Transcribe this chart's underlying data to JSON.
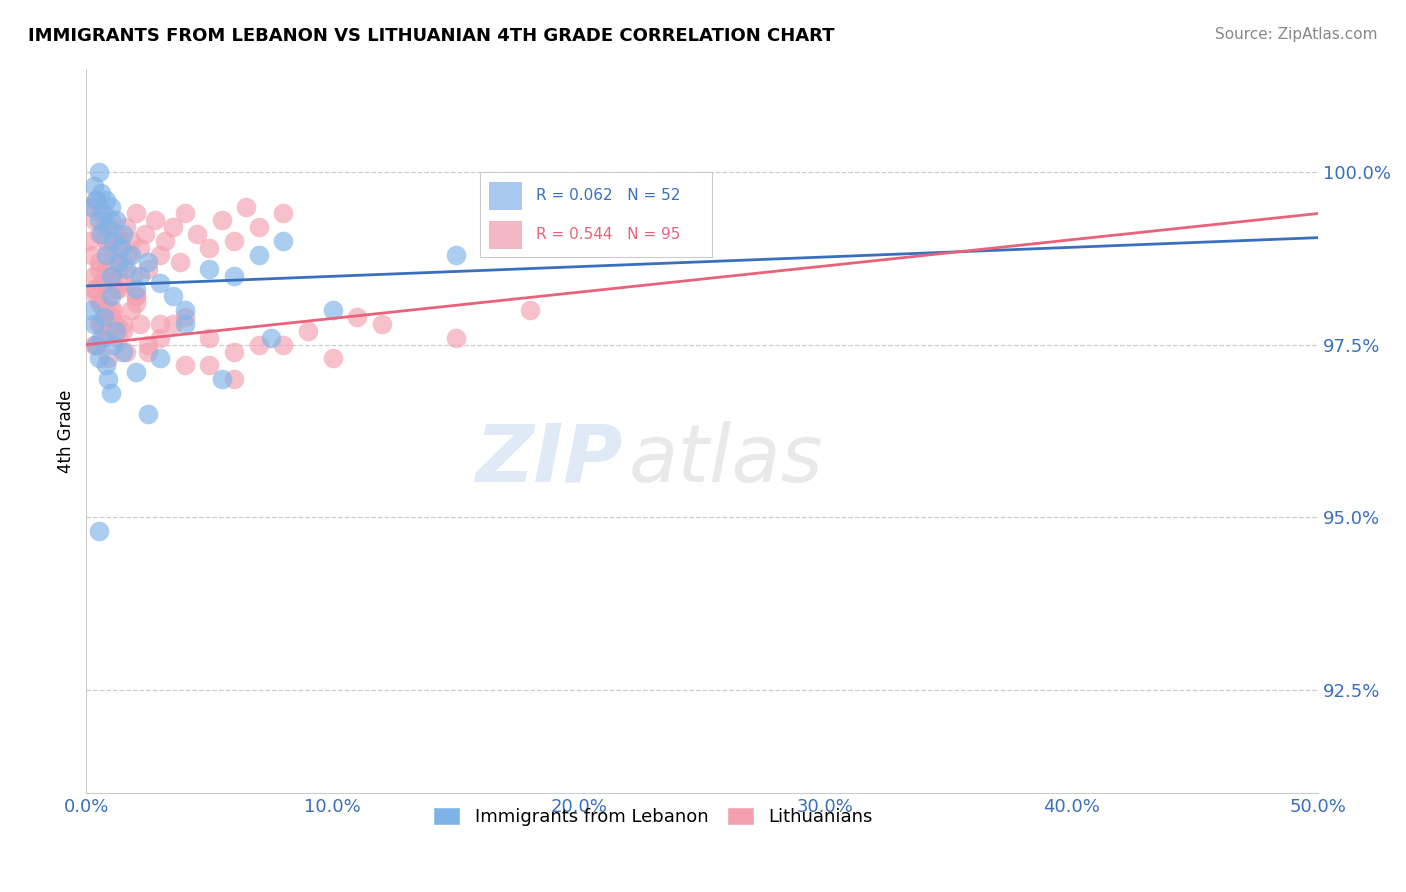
{
  "title": "IMMIGRANTS FROM LEBANON VS LITHUANIAN 4TH GRADE CORRELATION CHART",
  "source_text": "Source: ZipAtlas.com",
  "ylabel": "4th Grade",
  "xlim": [
    0.0,
    50.0
  ],
  "ylim": [
    91.0,
    101.5
  ],
  "yticks": [
    92.5,
    95.0,
    97.5,
    100.0
  ],
  "ytick_labels": [
    "92.5%",
    "95.0%",
    "97.5%",
    "100.0%"
  ],
  "xticks": [
    0.0,
    10.0,
    20.0,
    30.0,
    40.0,
    50.0
  ],
  "xtick_labels": [
    "0.0%",
    "10.0%",
    "20.0%",
    "30.0%",
    "40.0%",
    "50.0%"
  ],
  "legend_labels": [
    "Immigrants from Lebanon",
    "Lithuanians"
  ],
  "blue_color": "#7fb3e8",
  "pink_color": "#f4a0b0",
  "blue_line_color": "#3a6fbd",
  "pink_line_color": "#e8637a",
  "R_blue": 0.062,
  "N_blue": 52,
  "R_pink": 0.544,
  "N_pink": 95,
  "legend_box_blue": "#a8c8f0",
  "legend_box_pink": "#f4b8c4",
  "blue_scatter_x": [
    0.2,
    0.3,
    0.4,
    0.5,
    0.5,
    0.6,
    0.6,
    0.7,
    0.8,
    0.8,
    0.9,
    1.0,
    1.0,
    1.1,
    1.2,
    1.3,
    1.4,
    1.5,
    1.6,
    1.8,
    2.0,
    2.2,
    2.5,
    3.0,
    3.5,
    4.0,
    5.0,
    6.0,
    7.0,
    8.0,
    0.2,
    0.3,
    0.4,
    0.5,
    0.6,
    0.7,
    0.8,
    0.9,
    1.0,
    1.1,
    1.2,
    1.5,
    2.0,
    2.5,
    3.0,
    4.0,
    5.5,
    7.5,
    10.0,
    1.0,
    0.5,
    15.0
  ],
  "blue_scatter_y": [
    99.5,
    99.8,
    99.6,
    99.3,
    100.0,
    99.7,
    99.1,
    99.4,
    99.6,
    98.8,
    99.2,
    99.5,
    98.5,
    99.0,
    99.3,
    98.7,
    98.9,
    99.1,
    98.6,
    98.8,
    98.3,
    98.5,
    98.7,
    98.4,
    98.2,
    98.0,
    98.6,
    98.5,
    98.8,
    99.0,
    98.0,
    97.8,
    97.5,
    97.3,
    97.6,
    97.9,
    97.2,
    97.0,
    96.8,
    97.5,
    97.7,
    97.4,
    97.1,
    96.5,
    97.3,
    97.8,
    97.0,
    97.6,
    98.0,
    98.2,
    94.8,
    98.8
  ],
  "pink_scatter_x": [
    0.1,
    0.2,
    0.2,
    0.3,
    0.3,
    0.4,
    0.4,
    0.5,
    0.5,
    0.6,
    0.6,
    0.7,
    0.7,
    0.8,
    0.8,
    0.9,
    0.9,
    1.0,
    1.0,
    1.1,
    1.1,
    1.2,
    1.2,
    1.3,
    1.3,
    1.4,
    1.5,
    1.5,
    1.6,
    1.7,
    1.8,
    1.9,
    2.0,
    2.0,
    2.2,
    2.4,
    2.5,
    2.8,
    3.0,
    3.2,
    3.5,
    3.8,
    4.0,
    4.5,
    5.0,
    5.5,
    6.0,
    6.5,
    7.0,
    8.0,
    0.3,
    0.4,
    0.5,
    0.6,
    0.7,
    0.8,
    1.0,
    1.2,
    1.5,
    2.0,
    2.5,
    3.0,
    4.0,
    5.0,
    6.0,
    8.0,
    10.0,
    12.0,
    15.0,
    18.0,
    0.3,
    0.5,
    0.7,
    1.0,
    1.5,
    2.0,
    3.0,
    4.0,
    6.0,
    9.0,
    0.4,
    0.6,
    0.9,
    1.3,
    1.8,
    2.5,
    3.5,
    5.0,
    7.0,
    11.0,
    0.5,
    0.8,
    1.1,
    1.6,
    2.2
  ],
  "pink_scatter_y": [
    99.0,
    99.5,
    98.8,
    99.3,
    98.5,
    99.6,
    98.3,
    99.1,
    98.7,
    99.4,
    98.1,
    99.2,
    98.4,
    99.0,
    98.6,
    98.9,
    98.2,
    99.3,
    98.0,
    98.8,
    98.5,
    99.1,
    97.8,
    98.6,
    98.3,
    99.0,
    98.7,
    98.4,
    99.2,
    98.8,
    99.0,
    98.5,
    98.2,
    99.4,
    98.9,
    99.1,
    98.6,
    99.3,
    98.8,
    99.0,
    99.2,
    98.7,
    99.4,
    99.1,
    98.9,
    99.3,
    99.0,
    99.5,
    99.2,
    99.4,
    97.5,
    98.2,
    97.8,
    98.4,
    97.6,
    98.0,
    97.9,
    98.3,
    97.7,
    98.1,
    97.4,
    97.8,
    97.2,
    97.6,
    97.0,
    97.5,
    97.3,
    97.8,
    97.6,
    98.0,
    98.3,
    98.6,
    98.0,
    98.5,
    97.8,
    98.2,
    97.6,
    97.9,
    97.4,
    97.7,
    97.5,
    97.8,
    97.3,
    97.6,
    98.0,
    97.5,
    97.8,
    97.2,
    97.5,
    97.9,
    98.1,
    97.7,
    98.0,
    97.4,
    97.8
  ]
}
